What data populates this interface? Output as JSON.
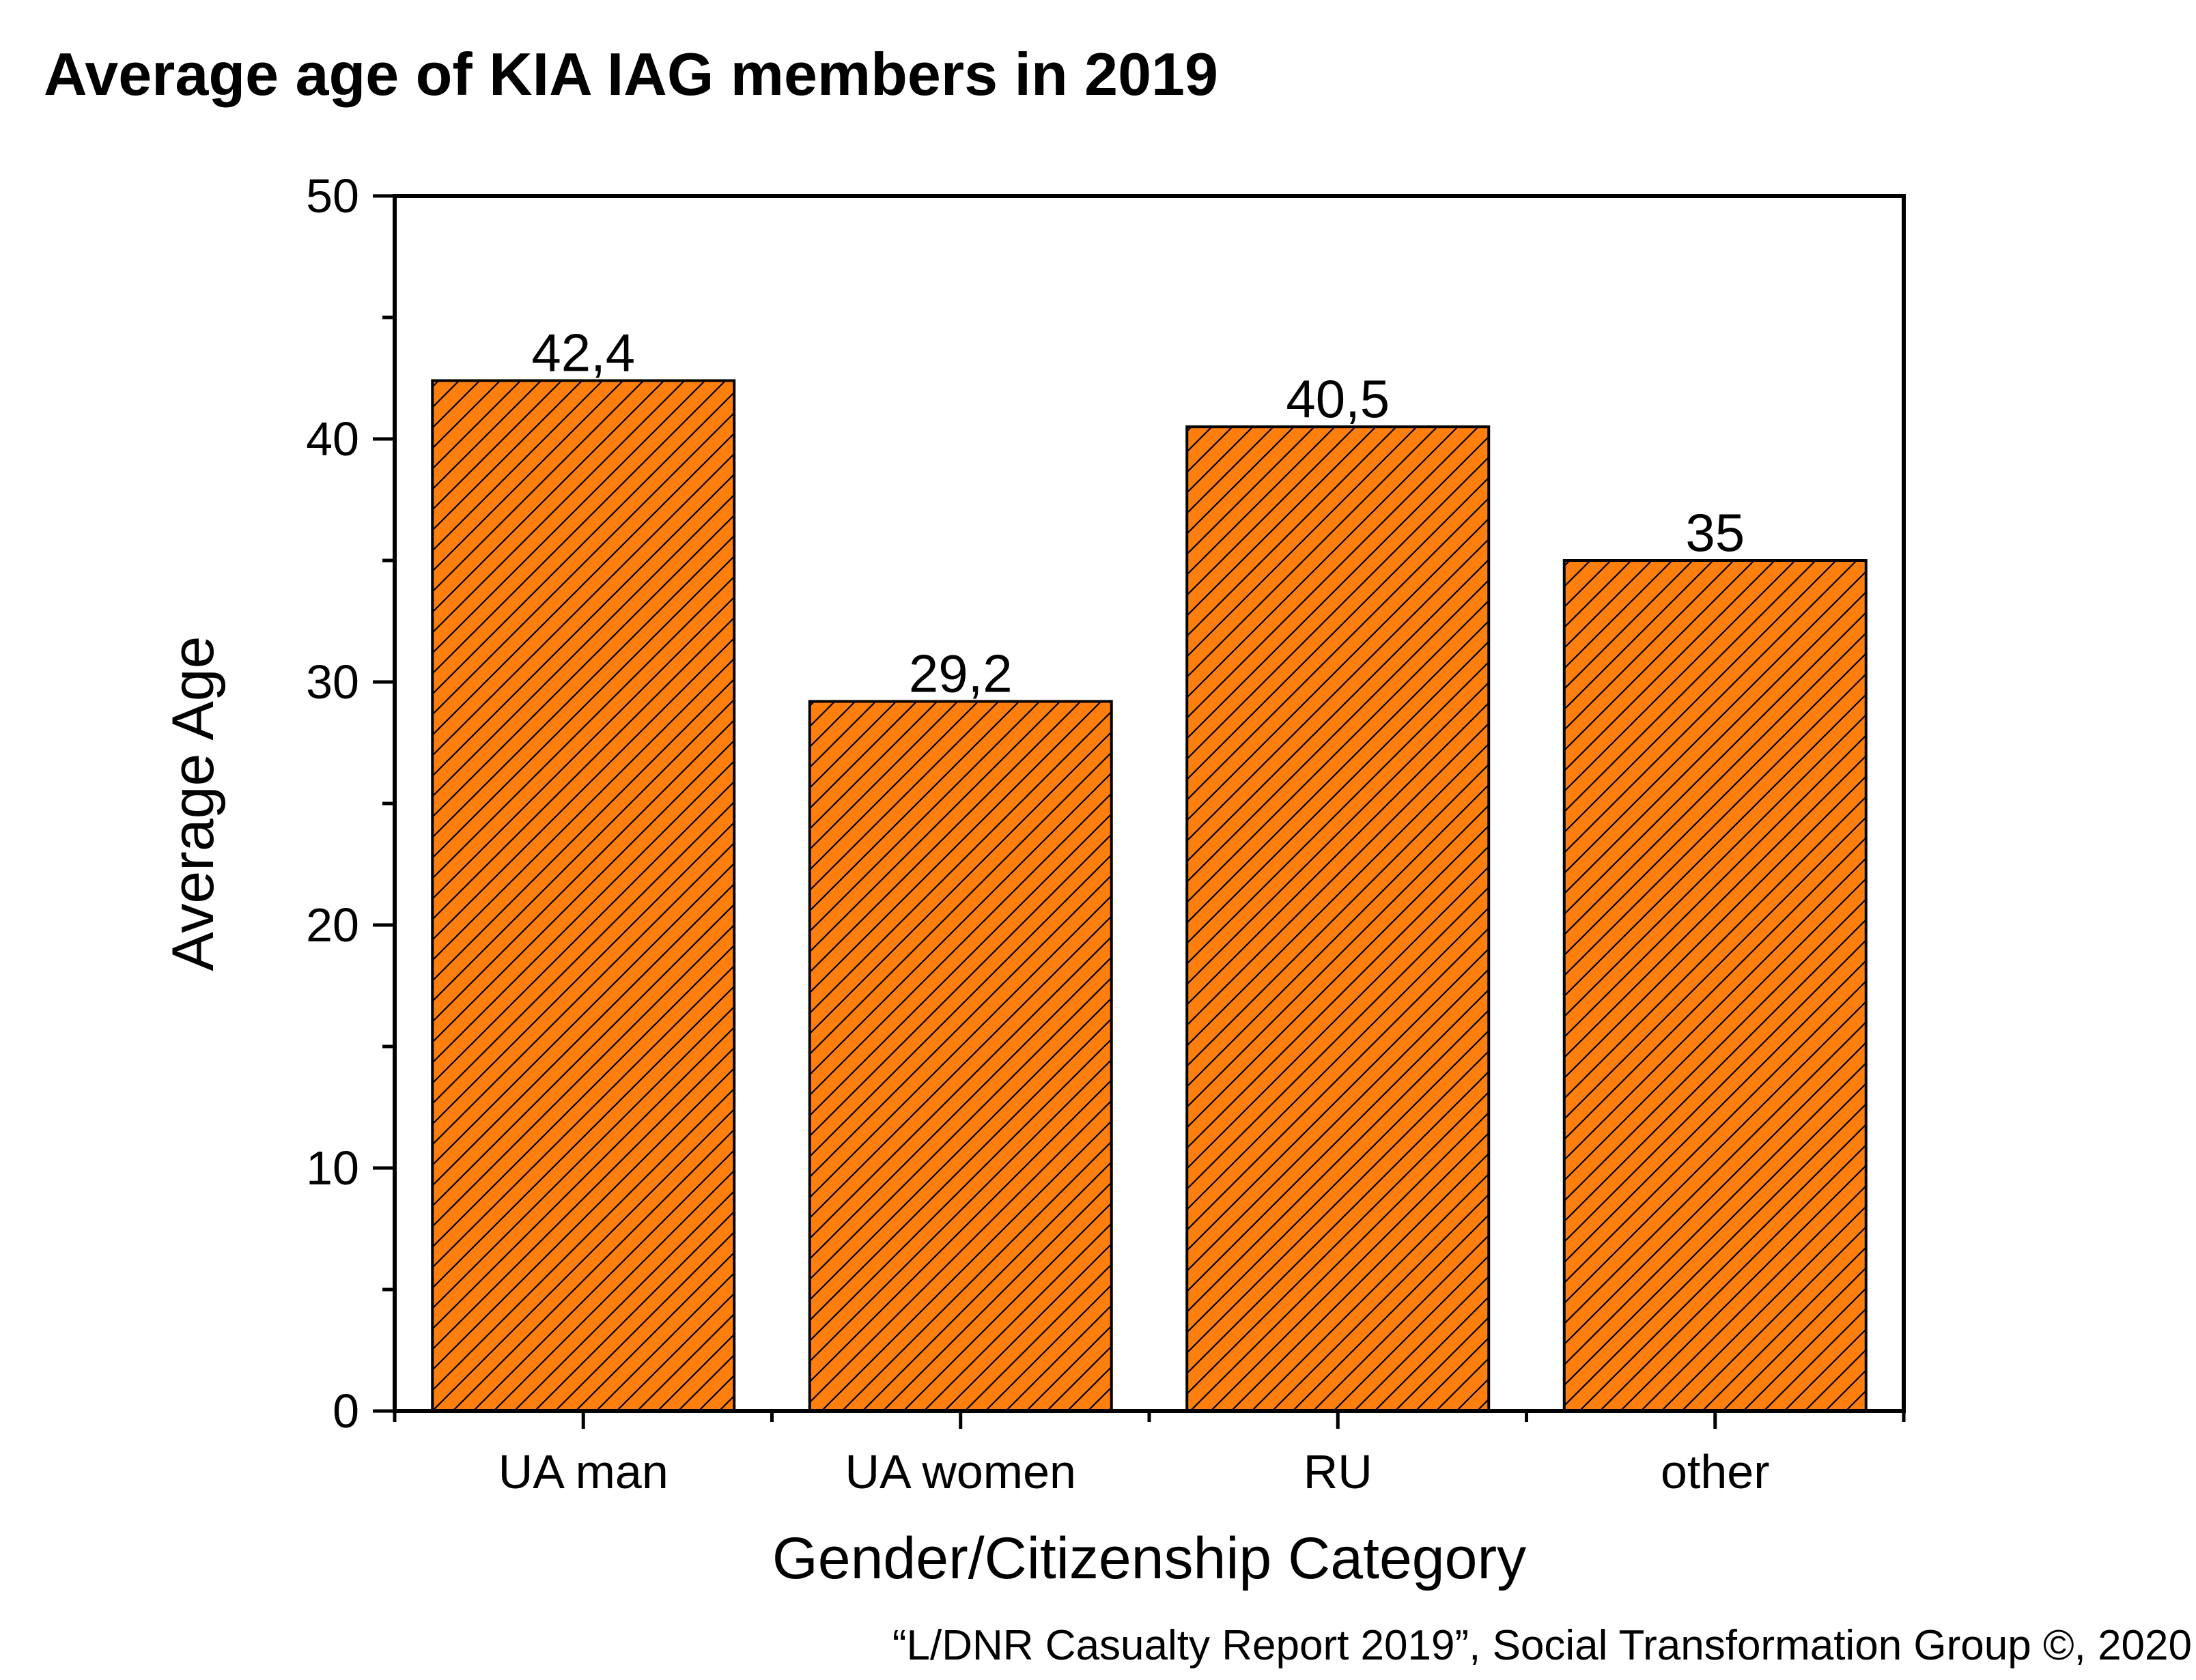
{
  "chart_data": {
    "type": "bar",
    "title": "Average age of KIA IAG members in 2019",
    "xlabel": "Gender/Citizenship Category",
    "ylabel": "Average Age",
    "categories": [
      "UA man",
      "UA women",
      "RU",
      "other"
    ],
    "values": [
      42.4,
      29.2,
      40.5,
      35
    ],
    "data_labels": [
      "42,4",
      "29,2",
      "40,5",
      "35"
    ],
    "ylim": [
      0,
      50
    ],
    "yticks": [
      0,
      10,
      20,
      30,
      40,
      50
    ],
    "grid": false,
    "legend": "none",
    "bar_color": "#ff7f0e",
    "bar_pattern": "diagonal-hatch"
  },
  "source": "“L/DNR Casualty Report 2019”, Social Transformation Group ©, 2020"
}
